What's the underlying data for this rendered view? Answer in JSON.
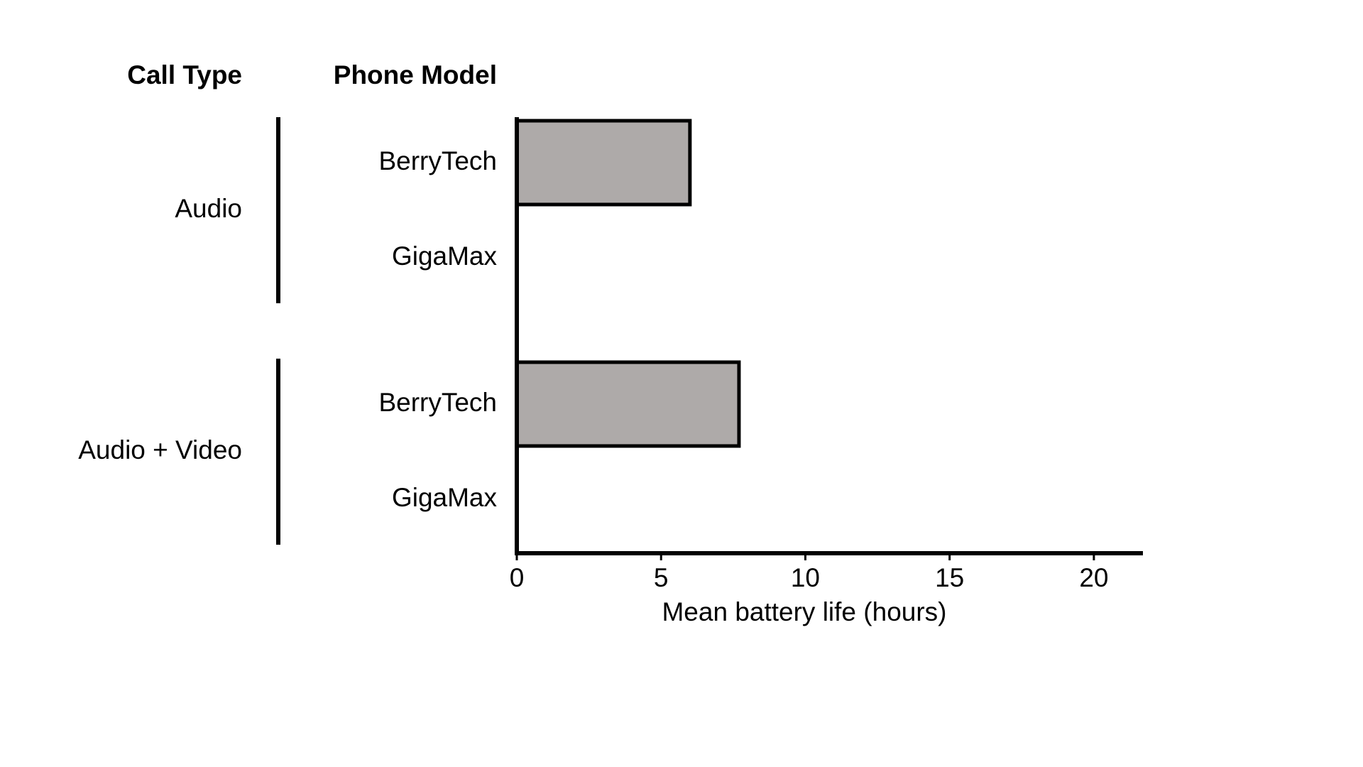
{
  "chart_data": {
    "type": "bar",
    "orientation": "horizontal",
    "group_header": "Call Type",
    "category_header": "Phone Model",
    "groups": [
      {
        "label": "Audio",
        "categories": [
          "BerryTech",
          "GigaMax"
        ],
        "values": [
          6.0,
          null
        ]
      },
      {
        "label": "Audio + Video",
        "categories": [
          "BerryTech",
          "GigaMax"
        ],
        "values": [
          7.7,
          null
        ]
      }
    ],
    "color": "#aeaaa9",
    "xlabel": "Mean battery life (hours)",
    "xlim": [
      0,
      21.7
    ],
    "xticks": [
      0,
      5,
      10,
      15,
      20
    ]
  }
}
